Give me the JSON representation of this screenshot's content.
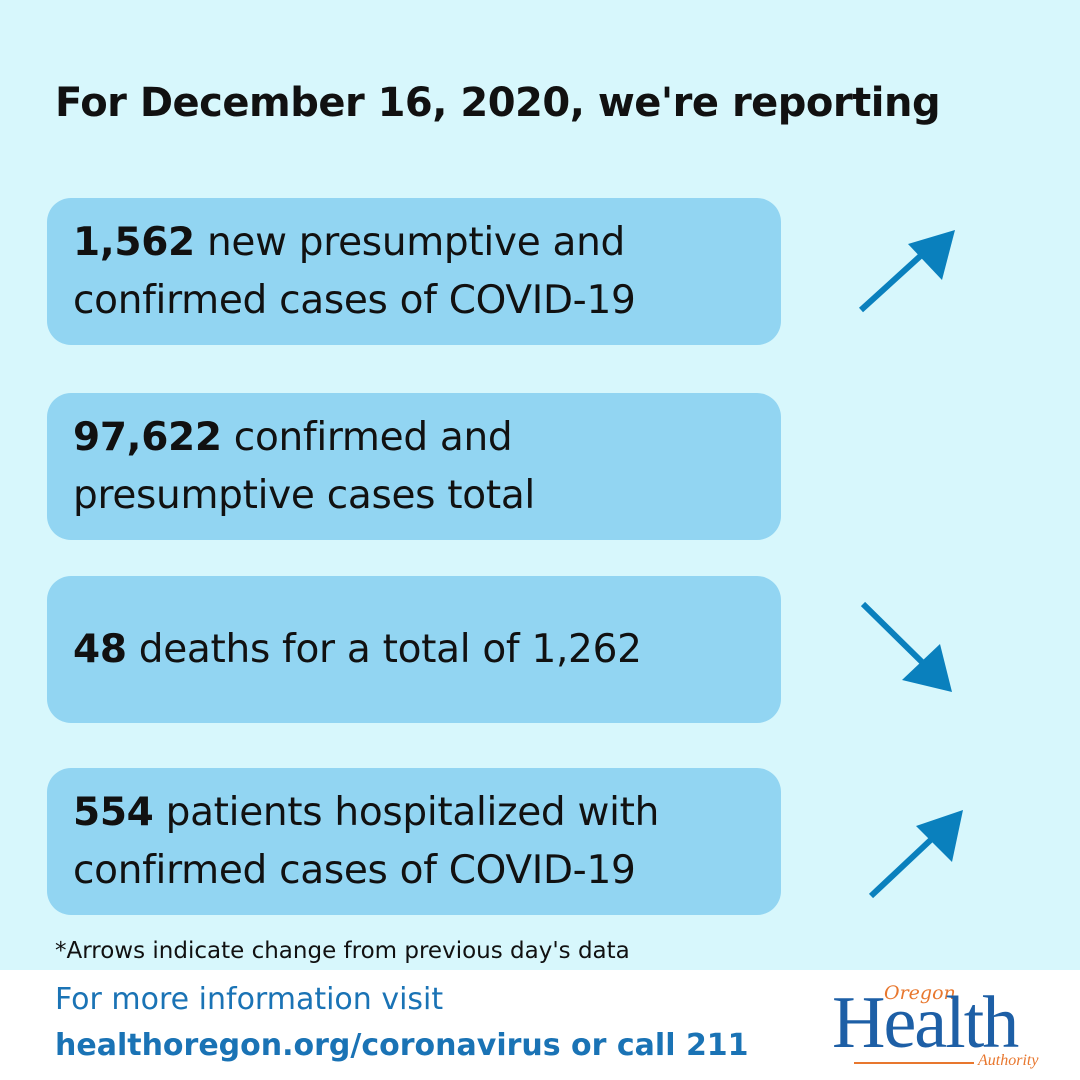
{
  "headline": "For December 16, 2020, we're reporting",
  "stats": [
    {
      "number": "1,562",
      "text": " new presumptive and confirmed cases of COVID-19",
      "trend": "up"
    },
    {
      "number": "97,622",
      "text": " confirmed and presumptive cases total",
      "trend": "none"
    },
    {
      "number": "48",
      "text": " deaths for a total of 1,262",
      "trend": "down"
    },
    {
      "number": "554",
      "text": " patients hospitalized with confirmed cases of COVID-19",
      "trend": "up"
    }
  ],
  "footnote": "*Arrows indicate change from previous day's data",
  "footer": {
    "line1": "For more information visit",
    "line2": "healthoregon.org/coronavirus or call 211"
  },
  "logo": {
    "top": "Oregon",
    "main": "Health",
    "bottom": "Authority"
  },
  "colors": {
    "background": "#d7f7fc",
    "card": "#92d5f2",
    "arrow": "#0a80bd",
    "footer_text": "#1a73b5",
    "logo_blue": "#1d5fa6",
    "logo_orange": "#e8772e"
  }
}
